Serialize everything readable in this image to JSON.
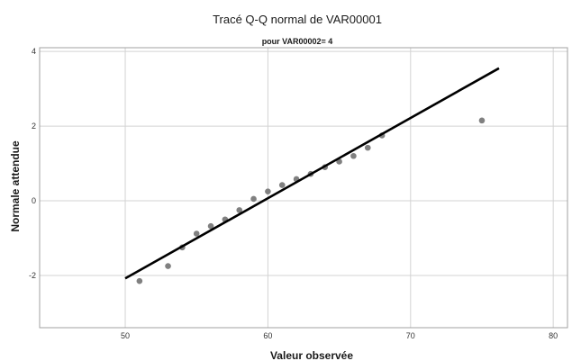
{
  "chart_data": {
    "type": "scatter",
    "title": "Tracé Q-Q normal de VAR00001",
    "subtitle": "pour VAR00002= 4",
    "xlabel": "Valeur observée",
    "ylabel": "Normale attendue",
    "xlim": [
      44,
      81
    ],
    "ylim": [
      -3.4,
      4.1
    ],
    "xticks": [
      50,
      60,
      70,
      80
    ],
    "yticks": [
      4,
      2,
      0,
      -2
    ],
    "grid": true,
    "colors": {
      "points": "#808080",
      "line": "#000000",
      "grid": "#d3d3d3",
      "frame": "#a0a0a0"
    },
    "series": [
      {
        "values_xy": [
          [
            51,
            -2.15
          ],
          [
            53,
            -1.75
          ],
          [
            54,
            -1.25
          ],
          [
            55,
            -0.88
          ],
          [
            56,
            -0.68
          ],
          [
            57,
            -0.5
          ],
          [
            58,
            -0.25
          ],
          [
            59,
            0.05
          ],
          [
            60,
            0.25
          ],
          [
            61,
            0.42
          ],
          [
            62,
            0.58
          ],
          [
            63,
            0.72
          ],
          [
            64,
            0.9
          ],
          [
            65,
            1.05
          ],
          [
            66,
            1.2
          ],
          [
            67,
            1.42
          ],
          [
            68,
            1.75
          ],
          [
            75,
            2.15
          ]
        ]
      }
    ],
    "reference_line": {
      "from": [
        50,
        -2.08
      ],
      "to": [
        76.2,
        3.55
      ]
    }
  }
}
